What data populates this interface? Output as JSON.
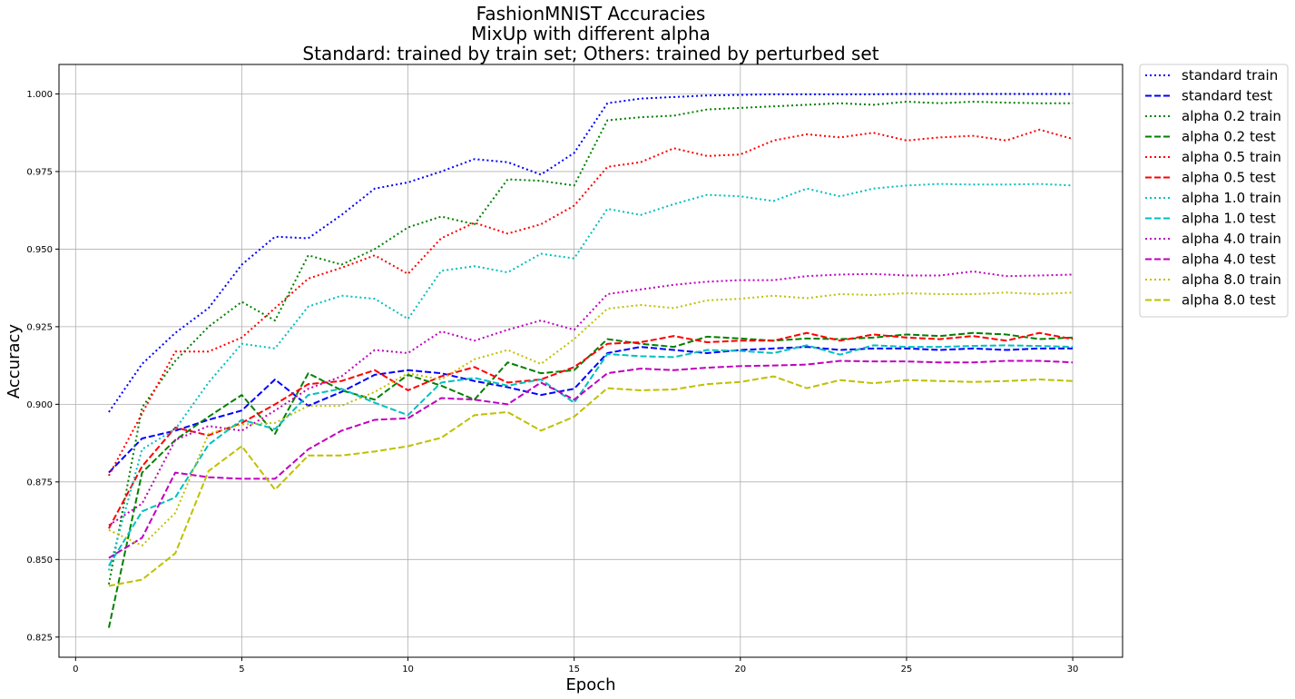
{
  "chart_data": {
    "type": "line",
    "title": [
      "FashionMNIST Accuracies",
      "MixUp with different alpha",
      "Standard: trained by train set; Others: trained by perturbed set"
    ],
    "xlabel": "Epoch",
    "ylabel": "Accuracy",
    "xlim": [
      -0.5,
      31.5
    ],
    "ylim": [
      0.8185,
      1.0095
    ],
    "xticks": [
      0,
      5,
      10,
      15,
      20,
      25,
      30
    ],
    "yticks": [
      0.825,
      0.85,
      0.875,
      0.9,
      0.925,
      0.95,
      0.975,
      1.0
    ],
    "xtick_labels": [
      "0",
      "5",
      "10",
      "15",
      "20",
      "25",
      "30"
    ],
    "ytick_labels": [
      "0.825",
      "0.850",
      "0.875",
      "0.900",
      "0.925",
      "0.950",
      "0.975",
      "1.000"
    ],
    "grid": true,
    "legend_position": "outside-top-right",
    "x": [
      1,
      2,
      3,
      4,
      5,
      6,
      7,
      8,
      9,
      10,
      11,
      12,
      13,
      14,
      15,
      16,
      17,
      18,
      19,
      20,
      21,
      22,
      23,
      24,
      25,
      26,
      27,
      28,
      29,
      30
    ],
    "series": [
      {
        "name": "standard train",
        "color": "#0000ff",
        "dash": "dotted",
        "values": [
          0.8975,
          0.913,
          0.923,
          0.931,
          0.945,
          0.954,
          0.9535,
          0.961,
          0.9695,
          0.9715,
          0.975,
          0.979,
          0.978,
          0.974,
          0.981,
          0.997,
          0.9985,
          0.999,
          0.9995,
          0.9997,
          0.9999,
          0.9999,
          0.9999,
          0.9999,
          1.0,
          1.0,
          1.0,
          1.0,
          1.0,
          1.0
        ]
      },
      {
        "name": "standard test",
        "color": "#0000ff",
        "dash": "dashed",
        "values": [
          0.878,
          0.889,
          0.8915,
          0.895,
          0.898,
          0.908,
          0.8995,
          0.904,
          0.9095,
          0.911,
          0.91,
          0.9075,
          0.9055,
          0.903,
          0.905,
          0.9165,
          0.9185,
          0.9175,
          0.9165,
          0.9175,
          0.918,
          0.9185,
          0.9175,
          0.918,
          0.918,
          0.9175,
          0.918,
          0.9175,
          0.918,
          0.918
        ]
      },
      {
        "name": "alpha 0.2 train",
        "color": "#008000",
        "dash": "dotted",
        "values": [
          0.842,
          0.899,
          0.914,
          0.925,
          0.933,
          0.927,
          0.948,
          0.945,
          0.95,
          0.957,
          0.9605,
          0.958,
          0.9725,
          0.972,
          0.9705,
          0.9915,
          0.9925,
          0.993,
          0.995,
          0.9955,
          0.996,
          0.9965,
          0.997,
          0.9965,
          0.9975,
          0.997,
          0.9975,
          0.9972,
          0.997,
          0.997
        ]
      },
      {
        "name": "alpha 0.2 test",
        "color": "#008000",
        "dash": "dashed",
        "values": [
          0.828,
          0.878,
          0.8885,
          0.896,
          0.903,
          0.8905,
          0.91,
          0.9045,
          0.9015,
          0.9095,
          0.906,
          0.9015,
          0.9135,
          0.91,
          0.911,
          0.921,
          0.9195,
          0.9185,
          0.9218,
          0.9212,
          0.9205,
          0.9212,
          0.921,
          0.9215,
          0.9225,
          0.922,
          0.923,
          0.9225,
          0.921,
          0.9215
        ]
      },
      {
        "name": "alpha 0.5 train",
        "color": "#ff0000",
        "dash": "dotted",
        "values": [
          0.877,
          0.897,
          0.917,
          0.917,
          0.9215,
          0.931,
          0.9405,
          0.944,
          0.948,
          0.942,
          0.9535,
          0.9585,
          0.955,
          0.958,
          0.964,
          0.9765,
          0.978,
          0.9825,
          0.98,
          0.9805,
          0.985,
          0.987,
          0.986,
          0.9875,
          0.985,
          0.986,
          0.9865,
          0.985,
          0.9885,
          0.9855
        ]
      },
      {
        "name": "alpha 0.5 test",
        "color": "#ff0000",
        "dash": "dashed",
        "values": [
          0.86,
          0.88,
          0.8925,
          0.89,
          0.894,
          0.9,
          0.9065,
          0.9075,
          0.911,
          0.9045,
          0.909,
          0.912,
          0.907,
          0.908,
          0.912,
          0.9195,
          0.92,
          0.922,
          0.92,
          0.9205,
          0.9205,
          0.923,
          0.9205,
          0.9225,
          0.9215,
          0.921,
          0.922,
          0.9205,
          0.923,
          0.921
        ]
      },
      {
        "name": "alpha 1.0 train",
        "color": "#00bfbf",
        "dash": "dotted",
        "values": [
          0.8465,
          0.8855,
          0.892,
          0.907,
          0.9195,
          0.918,
          0.9315,
          0.935,
          0.934,
          0.9275,
          0.943,
          0.9445,
          0.9425,
          0.9485,
          0.947,
          0.963,
          0.961,
          0.9645,
          0.9675,
          0.967,
          0.9655,
          0.9695,
          0.967,
          0.9695,
          0.9705,
          0.971,
          0.9708,
          0.9708,
          0.971,
          0.9705
        ]
      },
      {
        "name": "alpha 1.0 test",
        "color": "#00bfbf",
        "dash": "dashed",
        "values": [
          0.848,
          0.8655,
          0.87,
          0.887,
          0.895,
          0.892,
          0.903,
          0.905,
          0.9005,
          0.8965,
          0.907,
          0.9085,
          0.906,
          0.908,
          0.9005,
          0.9162,
          0.9155,
          0.9152,
          0.9175,
          0.9172,
          0.9165,
          0.919,
          0.916,
          0.919,
          0.9185,
          0.9185,
          0.9188,
          0.919,
          0.9188,
          0.9185
        ]
      },
      {
        "name": "alpha 4.0 train",
        "color": "#bf00bf",
        "dash": "dotted",
        "values": [
          0.861,
          0.868,
          0.8885,
          0.893,
          0.8915,
          0.898,
          0.905,
          0.909,
          0.9175,
          0.9165,
          0.9235,
          0.9205,
          0.924,
          0.927,
          0.924,
          0.9355,
          0.937,
          0.9385,
          0.9395,
          0.94,
          0.94,
          0.9413,
          0.9418,
          0.942,
          0.9415,
          0.9415,
          0.9428,
          0.9413,
          0.9415,
          0.9418
        ]
      },
      {
        "name": "alpha 4.0 test",
        "color": "#bf00bf",
        "dash": "dashed",
        "values": [
          0.8505,
          0.857,
          0.878,
          0.8765,
          0.876,
          0.876,
          0.8855,
          0.8915,
          0.895,
          0.8955,
          0.902,
          0.9015,
          0.9,
          0.907,
          0.9015,
          0.91,
          0.9115,
          0.911,
          0.9118,
          0.9123,
          0.9125,
          0.9128,
          0.914,
          0.9138,
          0.9138,
          0.9135,
          0.9135,
          0.914,
          0.914,
          0.9135
        ]
      },
      {
        "name": "alpha 8.0 train",
        "color": "#bfbf00",
        "dash": "dotted",
        "values": [
          0.8595,
          0.8545,
          0.865,
          0.8905,
          0.8935,
          0.894,
          0.8995,
          0.8995,
          0.904,
          0.91,
          0.908,
          0.9145,
          0.9175,
          0.913,
          0.921,
          0.9308,
          0.932,
          0.931,
          0.9335,
          0.934,
          0.935,
          0.9342,
          0.9355,
          0.9352,
          0.9358,
          0.9355,
          0.9355,
          0.936,
          0.9355,
          0.936
        ]
      },
      {
        "name": "alpha 8.0 test",
        "color": "#bfbf00",
        "dash": "dashed",
        "values": [
          0.8415,
          0.8435,
          0.852,
          0.8785,
          0.8865,
          0.8725,
          0.8835,
          0.8835,
          0.8848,
          0.8865,
          0.8892,
          0.8965,
          0.8975,
          0.8915,
          0.896,
          0.9052,
          0.9045,
          0.9048,
          0.9065,
          0.9072,
          0.909,
          0.9052,
          0.9078,
          0.9068,
          0.9078,
          0.9075,
          0.9072,
          0.9075,
          0.908,
          0.9075
        ]
      }
    ]
  }
}
